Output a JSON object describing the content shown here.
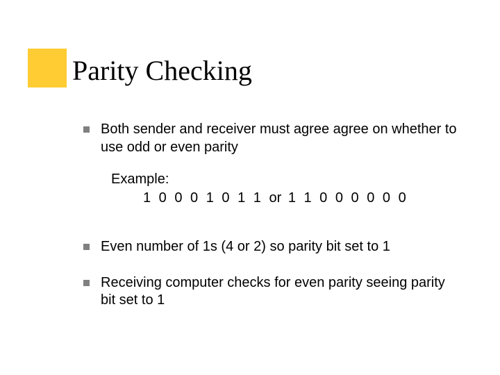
{
  "accent_color": "#ffcc33",
  "bullet_color": "#808080",
  "background_color": "#ffffff",
  "text_color": "#000000",
  "title": "Parity Checking",
  "title_fontsize": 40,
  "body_fontsize": 20,
  "bullets": {
    "b1": "Both sender and receiver must agree agree on whether to use odd or even parity",
    "b2": "Even number of 1s (4 or 2) so parity bit set to 1",
    "b3": "Receiving computer checks for even parity seeing parity bit set to 1"
  },
  "example": {
    "label": "Example:",
    "bits_a": "1 0 0 0 1 0 1 1",
    "or": "or",
    "bits_b": "1 1 0 0 0 0 0 0"
  }
}
